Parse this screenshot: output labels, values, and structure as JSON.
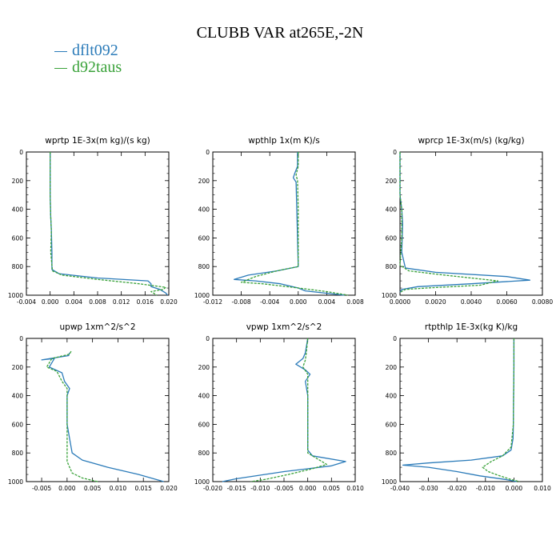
{
  "title": "CLUBB VAR at265E,-2N",
  "legend": [
    {
      "name": "dflt092",
      "color": "#2b7bb9"
    },
    {
      "name": "d92taus",
      "color": "#3aa23a"
    }
  ],
  "chart_data": [
    {
      "type": "line",
      "title": "wprtp  1E-3x(m kg)/(s kg)",
      "xlim": [
        -0.004,
        0.02
      ],
      "ylim": [
        0,
        1000
      ],
      "y_inverted": true,
      "xticks": [
        -0.004,
        0.0,
        0.004,
        0.008,
        0.012,
        0.016,
        0.02
      ],
      "xtick_labels": [
        "-0.004",
        "0.000",
        "0.004",
        "0.008",
        "0.012",
        "0.016",
        "0.020"
      ],
      "yticks": [
        0,
        200,
        400,
        600,
        800,
        1000
      ],
      "series": [
        {
          "name": "dflt092",
          "x": [
            0,
            0,
            0.0001,
            0.0002,
            0.0003,
            0.0003,
            0.0015,
            0.008,
            0.0165,
            0.017,
            0.017,
            0.0185,
            0.0195,
            0.0198
          ],
          "y": [
            0,
            300,
            450,
            550,
            700,
            820,
            850,
            880,
            900,
            920,
            940,
            960,
            985,
            1000
          ]
        },
        {
          "name": "d92taus",
          "x": [
            0,
            0,
            0.0001,
            0.0002,
            0.0001,
            0.0004,
            0.002,
            0.008,
            0.015,
            0.0195,
            0.019,
            0.017,
            0.018
          ],
          "y": [
            0,
            300,
            450,
            550,
            700,
            830,
            860,
            890,
            920,
            945,
            960,
            975,
            1000
          ]
        }
      ]
    },
    {
      "type": "line",
      "title": "wpthlp  1x(m K)/s",
      "xlim": [
        -0.012,
        0.008
      ],
      "ylim": [
        0,
        1000
      ],
      "y_inverted": true,
      "xticks": [
        -0.012,
        -0.008,
        -0.004,
        0.0,
        0.004,
        0.008
      ],
      "xtick_labels": [
        "-0.012",
        "-0.008",
        "-0.004",
        "0.000",
        "0.004",
        "0.008"
      ],
      "yticks": [
        0,
        200,
        400,
        600,
        800,
        1000
      ],
      "series": [
        {
          "name": "dflt092",
          "x": [
            -0.0001,
            -0.0001,
            -0.0005,
            -0.0007,
            -0.0003,
            -0.0002,
            -0.0001,
            0.0,
            -0.003,
            -0.007,
            -0.009,
            -0.006,
            -0.0025,
            0.0,
            0.001,
            0.0065
          ],
          "y": [
            0,
            100,
            150,
            180,
            210,
            400,
            600,
            800,
            830,
            860,
            890,
            900,
            920,
            950,
            970,
            1000
          ]
        },
        {
          "name": "d92taus",
          "x": [
            0.0,
            0.0,
            -0.0003,
            -0.0001,
            0.0,
            0.0,
            0.0,
            -0.003,
            -0.006,
            -0.008,
            -0.005,
            0.0,
            0.004,
            0.007
          ],
          "y": [
            0,
            100,
            160,
            200,
            400,
            600,
            800,
            830,
            870,
            910,
            920,
            950,
            975,
            1000
          ]
        }
      ]
    },
    {
      "type": "line",
      "title": "wprcp  1E-3x(m/s) (kg/kg)",
      "xlim": [
        0.0,
        0.008
      ],
      "ylim": [
        0,
        1000
      ],
      "y_inverted": true,
      "xticks": [
        0.0,
        0.002,
        0.004,
        0.006,
        0.008
      ],
      "xtick_labels": [
        "0.0000",
        "0.0020",
        "0.0040",
        "0.0060",
        "0.0080"
      ],
      "yticks": [
        0,
        200,
        400,
        600,
        800,
        1000
      ],
      "series": [
        {
          "name": "dflt092",
          "x": [
            0.0,
            0.0,
            0.0001,
            0.00015,
            0.0001,
            0.0003,
            0.002,
            0.006,
            0.0073,
            0.004,
            0.001,
            0.0001,
            0.0
          ],
          "y": [
            0,
            300,
            400,
            500,
            700,
            810,
            840,
            870,
            895,
            920,
            940,
            960,
            980
          ]
        },
        {
          "name": "d92taus",
          "x": [
            0.0,
            0.0,
            0.0001,
            0.0001,
            0.0,
            0.0005,
            0.0025,
            0.0055,
            0.0045,
            0.0015,
            0.0003,
            0.0
          ],
          "y": [
            0,
            300,
            400,
            600,
            790,
            830,
            860,
            900,
            930,
            950,
            960,
            980
          ]
        }
      ]
    },
    {
      "type": "line",
      "title": "upwp  1xm^2/s^2",
      "xlim": [
        -0.008,
        0.02
      ],
      "ylim": [
        0,
        1000
      ],
      "y_inverted": true,
      "xticks": [
        -0.005,
        0.0,
        0.005,
        0.01,
        0.015,
        0.02
      ],
      "xtick_labels": [
        "-0.005",
        "0.000",
        "0.005",
        "0.010",
        "0.015",
        "0.020"
      ],
      "yticks": [
        0,
        200,
        400,
        600,
        800,
        1000
      ],
      "series": [
        {
          "name": "dflt092",
          "x": [
            0.0005,
            0.0003,
            -0.005,
            -0.0025,
            -0.0035,
            -0.001,
            -0.0005,
            0.0005,
            0.0,
            0.0,
            0.0,
            0.0005,
            0.001,
            0.003,
            0.008,
            0.014,
            0.019
          ],
          "y": [
            100,
            120,
            150,
            140,
            200,
            240,
            300,
            350,
            400,
            500,
            600,
            700,
            800,
            850,
            900,
            950,
            1000
          ]
        },
        {
          "name": "d92taus",
          "x": [
            0.0008,
            0.0005,
            -0.003,
            -0.004,
            -0.002,
            -0.001,
            0.0,
            0.0,
            0.0,
            0.0,
            0.0,
            0.0005,
            0.001,
            0.003,
            0.006
          ],
          "y": [
            90,
            110,
            140,
            200,
            230,
            300,
            350,
            400,
            600,
            800,
            860,
            900,
            940,
            975,
            1000
          ]
        }
      ]
    },
    {
      "type": "line",
      "title": "vpwp  1xm^2/s^2",
      "xlim": [
        -0.02,
        0.01
      ],
      "ylim": [
        0,
        1000
      ],
      "y_inverted": true,
      "xticks": [
        -0.02,
        -0.015,
        -0.01,
        -0.005,
        0.0,
        0.005,
        0.01
      ],
      "xtick_labels": [
        "-0.020",
        "-0.015",
        "-0.010",
        "-0.005",
        "0.000",
        "0.005",
        "0.010"
      ],
      "yticks": [
        0,
        200,
        400,
        600,
        800,
        1000
      ],
      "series": [
        {
          "name": "dflt092",
          "x": [
            0.0,
            -0.0005,
            -0.001,
            -0.0025,
            -0.0005,
            0.0005,
            -0.0005,
            0.0,
            0.0,
            0.0,
            0.001,
            0.008,
            0.005,
            -0.005,
            -0.015,
            -0.018
          ],
          "y": [
            0,
            100,
            140,
            180,
            220,
            250,
            300,
            400,
            600,
            780,
            820,
            860,
            890,
            930,
            980,
            1000
          ]
        },
        {
          "name": "d92taus",
          "x": [
            0.0,
            -0.0003,
            -0.0005,
            -0.001,
            0.0,
            0.0,
            0.0,
            0.0,
            0.002,
            0.004,
            0.001,
            -0.004,
            -0.009,
            -0.012
          ],
          "y": [
            0,
            100,
            150,
            200,
            250,
            400,
            600,
            800,
            840,
            880,
            910,
            950,
            985,
            1000
          ]
        }
      ]
    },
    {
      "type": "line",
      "title": "rtpthlp  1E-3x(kg K)/kg",
      "xlim": [
        -0.04,
        0.01
      ],
      "ylim": [
        0,
        1000
      ],
      "y_inverted": true,
      "xticks": [
        -0.04,
        -0.03,
        -0.02,
        -0.01,
        0.0,
        0.01
      ],
      "xtick_labels": [
        "-0.040",
        "-0.030",
        "-0.020",
        "-0.010",
        "0.000",
        "0.010"
      ],
      "yticks": [
        0,
        200,
        400,
        600,
        800,
        1000
      ],
      "series": [
        {
          "name": "dflt092",
          "x": [
            0.0,
            0.0,
            -0.0001,
            -0.0002,
            -0.0003,
            -0.001,
            -0.004,
            -0.015,
            -0.03,
            -0.039,
            -0.03,
            -0.02,
            -0.012,
            -0.003,
            0.001
          ],
          "y": [
            0,
            200,
            400,
            600,
            700,
            780,
            820,
            850,
            870,
            885,
            900,
            930,
            960,
            985,
            1000
          ]
        },
        {
          "name": "d92taus",
          "x": [
            0.0,
            0.0,
            -0.0001,
            -0.0002,
            -0.001,
            -0.004,
            -0.008,
            -0.011,
            -0.009,
            -0.005,
            -0.001,
            0.002
          ],
          "y": [
            0,
            200,
            400,
            600,
            760,
            820,
            860,
            900,
            930,
            960,
            985,
            1000
          ]
        }
      ]
    }
  ]
}
